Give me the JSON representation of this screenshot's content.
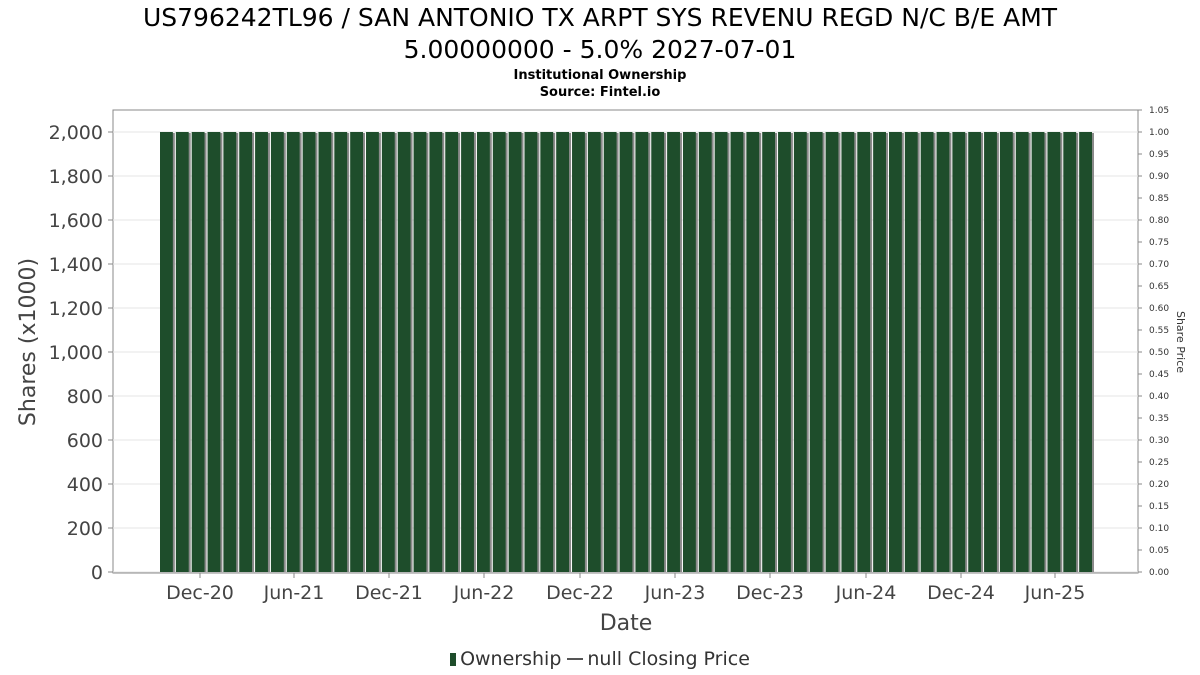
{
  "title_line1": "US796242TL96 / SAN ANTONIO TX ARPT SYS REVENU REGD N/C B/E AMT",
  "title_line2": "5.00000000 - 5.0% 2027-07-01",
  "subtitle_line1": "Institutional Ownership",
  "subtitle_line2": "Source: Fintel.io",
  "legend": {
    "ownership": "Ownership",
    "price": "null Closing Price"
  },
  "chart_data": {
    "type": "bar",
    "xlabel": "Date",
    "ylabel": "Shares (x1000)",
    "y2label": "Share Price",
    "ylim": [
      0,
      2100
    ],
    "y2lim": [
      0,
      1.05
    ],
    "yticks": [
      "0",
      "200",
      "400",
      "600",
      "800",
      "1,000",
      "1,200",
      "1,400",
      "1,600",
      "1,800",
      "2,000"
    ],
    "y2ticks": [
      "0.00",
      "0.05",
      "0.10",
      "0.15",
      "0.20",
      "0.25",
      "0.30",
      "0.35",
      "0.40",
      "0.45",
      "0.50",
      "0.55",
      "0.60",
      "0.65",
      "0.70",
      "0.75",
      "0.80",
      "0.85",
      "0.90",
      "0.95",
      "1.00",
      "1.05"
    ],
    "xticks": [
      "Dec-20",
      "Jun-21",
      "Dec-21",
      "Jun-22",
      "Dec-22",
      "Jun-23",
      "Dec-23",
      "Jun-24",
      "Dec-24",
      "Jun-25"
    ],
    "grid": true,
    "bar_color": "#1e4d2b",
    "series": [
      {
        "name": "Ownership",
        "values": [
          2000,
          2000,
          2000,
          2000,
          2000,
          2000,
          2000,
          2000,
          2000,
          2000,
          2000,
          2000,
          2000,
          2000,
          2000,
          2000,
          2000,
          2000,
          2000,
          2000,
          2000,
          2000,
          2000,
          2000,
          2000,
          2000,
          2000,
          2000,
          2000,
          2000,
          2000,
          2000,
          2000,
          2000,
          2000,
          2000,
          2000,
          2000,
          2000,
          2000,
          2000,
          2000,
          2000,
          2000,
          2000,
          2000,
          2000,
          2000,
          2000,
          2000,
          2000,
          2000,
          2000,
          2000,
          2000,
          2000,
          2000,
          2000,
          2000
        ]
      }
    ]
  }
}
